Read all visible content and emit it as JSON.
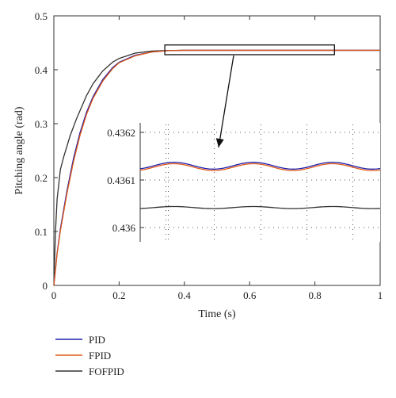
{
  "chart_data": [
    {
      "type": "line",
      "role": "main",
      "xlabel": "Time (s)",
      "ylabel": "Pitching angle (rad)",
      "xlim": [
        0,
        1
      ],
      "ylim": [
        0,
        0.5
      ],
      "xticks": [
        "0",
        "0.2",
        "0.4",
        "0.6",
        "0.8",
        "1"
      ],
      "yticks": [
        "0",
        "0.1",
        "0.2",
        "0.3",
        "0.4",
        "0.5"
      ],
      "grid": false,
      "series": [
        {
          "name": "PID",
          "color": "#1f1fa8",
          "x": [
            0,
            0.01,
            0.02,
            0.04,
            0.06,
            0.08,
            0.1,
            0.12,
            0.15,
            0.18,
            0.2,
            0.25,
            0.3,
            0.35,
            0.4,
            0.5,
            0.6,
            0.7,
            0.8,
            0.9,
            1.0
          ],
          "y": [
            0,
            0.06,
            0.105,
            0.175,
            0.235,
            0.283,
            0.321,
            0.35,
            0.382,
            0.404,
            0.414,
            0.427,
            0.433,
            0.4355,
            0.4361,
            0.4361,
            0.4361,
            0.4361,
            0.4361,
            0.4361,
            0.4361
          ]
        },
        {
          "name": "FPID",
          "color": "#e05a1a",
          "x": [
            0,
            0.01,
            0.02,
            0.04,
            0.06,
            0.08,
            0.1,
            0.12,
            0.15,
            0.18,
            0.2,
            0.25,
            0.3,
            0.35,
            0.4,
            0.5,
            0.6,
            0.7,
            0.8,
            0.9,
            1.0
          ],
          "y": [
            0,
            0.058,
            0.101,
            0.17,
            0.229,
            0.278,
            0.317,
            0.347,
            0.379,
            0.402,
            0.413,
            0.426,
            0.433,
            0.4355,
            0.4361,
            0.4361,
            0.4361,
            0.4361,
            0.4361,
            0.4361,
            0.4361
          ]
        },
        {
          "name": "FOFPID",
          "color": "#333333",
          "x": [
            0,
            0.005,
            0.01,
            0.02,
            0.03,
            0.05,
            0.07,
            0.1,
            0.12,
            0.15,
            0.18,
            0.2,
            0.25,
            0.3,
            0.35,
            0.4,
            0.5,
            0.6,
            0.7,
            0.8,
            0.9,
            1.0
          ],
          "y": [
            0,
            0.1,
            0.16,
            0.215,
            0.238,
            0.278,
            0.31,
            0.352,
            0.374,
            0.398,
            0.414,
            0.421,
            0.431,
            0.4348,
            0.4359,
            0.436,
            0.436,
            0.436,
            0.436,
            0.436,
            0.436,
            0.436
          ]
        }
      ],
      "zoom_box": {
        "x": [
          0.34,
          0.86
        ],
        "y": [
          0.428,
          0.446
        ]
      }
    },
    {
      "type": "line",
      "role": "inset",
      "xlim": [
        0.34,
        0.86
      ],
      "ylim": [
        0.43597,
        0.43622
      ],
      "yticks": [
        "0.436",
        "0.4361",
        "0.4362"
      ],
      "ytick_values": [
        0.436,
        0.4361,
        0.4362
      ],
      "grid": true,
      "series": [
        {
          "name": "PID",
          "color": "#1f1fa8",
          "mean": 0.43613,
          "amplitude": 7.2e-06,
          "period": 0.172,
          "phase": 0.37
        },
        {
          "name": "FPID",
          "color": "#e05a1a",
          "mean": 0.436127,
          "amplitude": 7.2e-06,
          "period": 0.172,
          "phase": 0.37
        },
        {
          "name": "FOFPID",
          "color": "#333333",
          "mean": 0.436042,
          "amplitude": 2.2e-06,
          "period": 0.172,
          "phase": 0.37
        }
      ]
    }
  ],
  "legend": {
    "placement": "bottom-left",
    "entries": [
      {
        "label": "PID",
        "color": "#1f1fa8"
      },
      {
        "label": "FPID",
        "color": "#e05a1a"
      },
      {
        "label": "FOFPID",
        "color": "#333333"
      }
    ]
  }
}
